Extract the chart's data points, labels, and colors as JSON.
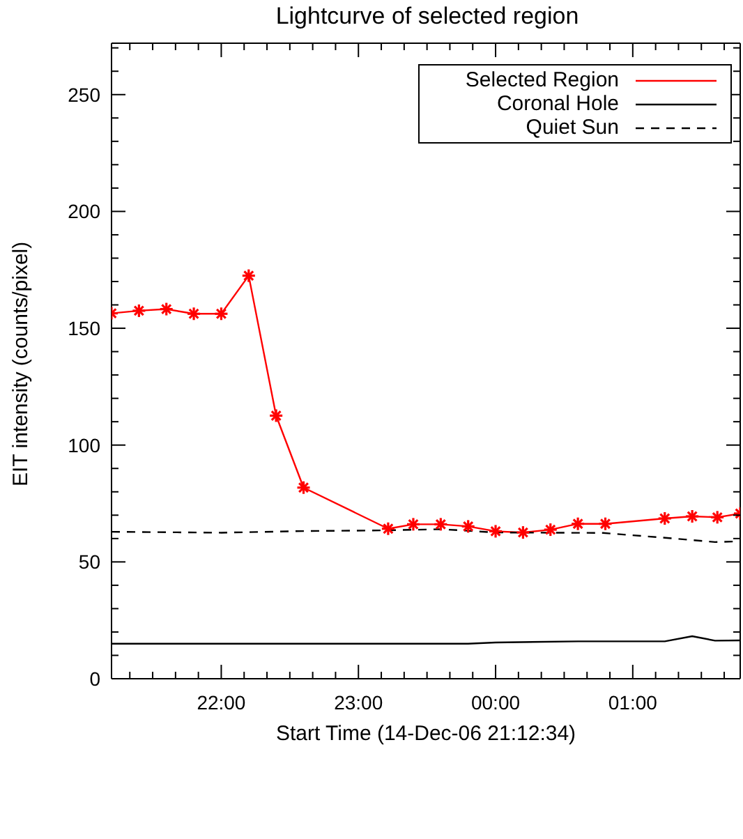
{
  "chart_data": {
    "type": "line",
    "title": "Lightcurve of selected region",
    "xlabel": "Start Time (14-Dec-06 21:12:34)",
    "ylabel": "EIT intensity (counts/pixel)",
    "xlim": [
      "--12-14T21:12",
      "--12-15T01:47"
    ],
    "ylim": [
      0,
      272
    ],
    "xticks": [
      {
        "value": "--12-14T21:20",
        "label": null
      },
      {
        "value": "--12-14T21:30",
        "label": null
      },
      {
        "value": "--12-14T21:40",
        "label": null
      },
      {
        "value": "--12-14T21:50",
        "label": null
      },
      {
        "value": "--12-14T22:00",
        "label": "22:00"
      },
      {
        "value": "--12-14T22:10",
        "label": null
      },
      {
        "value": "--12-14T22:20",
        "label": null
      },
      {
        "value": "--12-14T22:30",
        "label": null
      },
      {
        "value": "--12-14T22:40",
        "label": null
      },
      {
        "value": "--12-14T22:50",
        "label": null
      },
      {
        "value": "--12-14T23:00",
        "label": "23:00"
      },
      {
        "value": "--12-14T23:10",
        "label": null
      },
      {
        "value": "--12-14T23:20",
        "label": null
      },
      {
        "value": "--12-14T23:30",
        "label": null
      },
      {
        "value": "--12-14T23:40",
        "label": null
      },
      {
        "value": "--12-14T23:50",
        "label": null
      },
      {
        "value": "--12-15T00:00",
        "label": "00:00"
      },
      {
        "value": "--12-15T00:10",
        "label": null
      },
      {
        "value": "--12-15T00:20",
        "label": null
      },
      {
        "value": "--12-15T00:30",
        "label": null
      },
      {
        "value": "--12-15T00:40",
        "label": null
      },
      {
        "value": "--12-15T00:50",
        "label": null
      },
      {
        "value": "--12-15T01:00",
        "label": "01:00"
      },
      {
        "value": "--12-15T01:10",
        "label": null
      },
      {
        "value": "--12-15T01:20",
        "label": null
      },
      {
        "value": "--12-15T01:30",
        "label": null
      },
      {
        "value": "--12-15T01:40",
        "label": null
      }
    ],
    "yticks": [
      0,
      {
        "value": 10,
        "label": null
      },
      {
        "value": 20,
        "label": null
      },
      {
        "value": 30,
        "label": null
      },
      {
        "value": 40,
        "label": null
      },
      50,
      {
        "value": 60,
        "label": null
      },
      {
        "value": 70,
        "label": null
      },
      {
        "value": 80,
        "label": null
      },
      {
        "value": 90,
        "label": null
      },
      100,
      {
        "value": 110,
        "label": null
      },
      {
        "value": 120,
        "label": null
      },
      {
        "value": 130,
        "label": null
      },
      {
        "value": 140,
        "label": null
      },
      150,
      {
        "value": 160,
        "label": null
      },
      {
        "value": 170,
        "label": null
      },
      {
        "value": 180,
        "label": null
      },
      {
        "value": 190,
        "label": null
      },
      200,
      {
        "value": 210,
        "label": null
      },
      {
        "value": 220,
        "label": null
      },
      {
        "value": 230,
        "label": null
      },
      {
        "value": 240,
        "label": null
      },
      250,
      {
        "value": 260,
        "label": null
      },
      {
        "value": 270,
        "label": null
      }
    ],
    "legend": "top right",
    "series": [
      {
        "name": "Selected Region",
        "color": "#ff0000",
        "marker": "cross",
        "line_style": "solid",
        "x": [
          "--12-14T21:12",
          "--12-14T21:24",
          "--12-14T21:36",
          "--12-14T21:48",
          "--12-14T22:00",
          "--12-14T22:12",
          "--12-14T22:24",
          "--12-14T22:36",
          "--12-14T23:13",
          "--12-14T23:24",
          "--12-14T23:36",
          "--12-14T23:48",
          "--12-15T00:00",
          "--12-15T00:12",
          "--12-15T00:24",
          "--12-15T00:36",
          "--12-15T00:48",
          "--12-15T01:14",
          "--12-15T01:26",
          "--12-15T01:37",
          "--12-15T01:47"
        ],
        "values": [
          156.4,
          157.5,
          158.2,
          156.2,
          156.2,
          172.5,
          112.6,
          81.8,
          64.2,
          66.1,
          66.1,
          65.2,
          63.1,
          62.6,
          63.8,
          66.3,
          66.3,
          68.6,
          69.5,
          69.1,
          70.7
        ]
      },
      {
        "name": "Coronal Hole",
        "color": "#000000",
        "marker": "none",
        "line_style": "solid",
        "x": [
          "--12-14T21:12",
          "--12-14T22:00",
          "--12-14T22:36",
          "--12-14T23:12",
          "--12-14T23:48",
          "--12-15T00:00",
          "--12-15T00:36",
          "--12-15T01:14",
          "--12-15T01:26",
          "--12-15T01:36",
          "--12-15T01:47"
        ],
        "values": [
          15.0,
          15.0,
          15.0,
          15.0,
          15.0,
          15.5,
          16.0,
          16.0,
          18.2,
          16.3,
          16.4
        ]
      },
      {
        "name": "Quiet Sun",
        "color": "#000000",
        "marker": "none",
        "line_style": "dashed",
        "x": [
          "--12-14T21:12",
          "--12-14T22:00",
          "--12-14T22:36",
          "--12-14T23:12",
          "--12-14T23:36",
          "--12-15T00:00",
          "--12-15T00:47",
          "--12-15T01:17",
          "--12-15T01:36",
          "--12-15T01:47"
        ],
        "values": [
          62.9,
          62.5,
          63.2,
          63.5,
          64.0,
          62.6,
          62.4,
          60.1,
          58.5,
          58.8
        ]
      }
    ]
  }
}
